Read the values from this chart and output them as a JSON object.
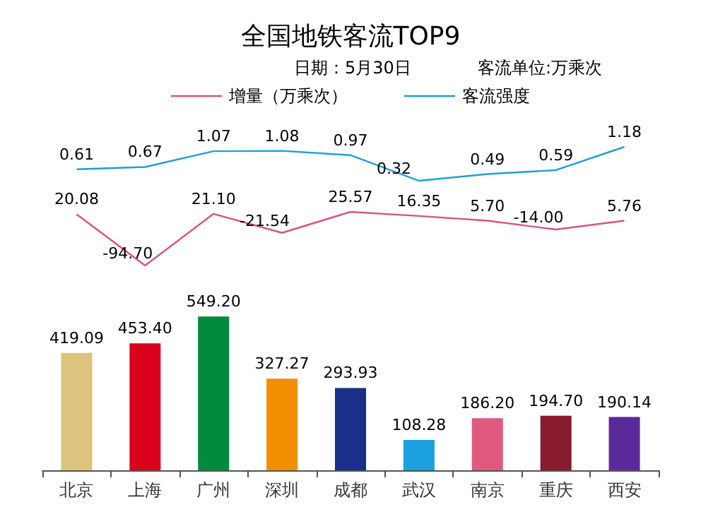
{
  "chart_data": [
    {
      "type": "line",
      "title": "全国地铁客流TOP9",
      "subtitle": "日期：5月30日",
      "annotations": [
        "客流单位:万乘次"
      ],
      "series": [
        {
          "name": "客流强度",
          "color": "#1e9fd6",
          "values": [
            0.61,
            0.67,
            1.07,
            1.08,
            0.97,
            0.32,
            0.49,
            0.59,
            1.18
          ],
          "value_labels": [
            "0.61",
            "0.67",
            "1.07",
            "1.08",
            "0.97",
            "0.32",
            "0.49",
            "0.59",
            "1.18"
          ]
        }
      ],
      "legend": "top",
      "marker": "none",
      "tick_labels": false
    },
    {
      "type": "line",
      "series": [
        {
          "name": "增量（万乘次）",
          "color": "#d9557a",
          "values": [
            20.08,
            -94.7,
            21.1,
            -21.54,
            25.57,
            16.35,
            5.7,
            -14.0,
            5.76
          ],
          "value_labels": [
            "20.08",
            "-94.70",
            "21.10",
            "-21.54",
            "25.57",
            "16.35",
            "5.70",
            "-14.00",
            "5.76"
          ]
        }
      ],
      "marker": "none",
      "tick_labels": false
    },
    {
      "type": "bar",
      "categories": [
        "北京",
        "上海",
        "广州",
        "深圳",
        "成都",
        "武汉",
        "南京",
        "重庆",
        "西安"
      ],
      "series": [
        {
          "type": "bar",
          "colors": [
            "#dcc47e",
            "#d9001b",
            "#008a3e",
            "#f09000",
            "#1a2f87",
            "#1ca0e0",
            "#e05a80",
            "#8a1a2e",
            "#5a2a9a"
          ],
          "values": [
            419.09,
            453.4,
            549.2,
            327.27,
            293.93,
            108.28,
            186.2,
            194.7,
            190.14
          ],
          "value_labels": [
            "419.09",
            "453.40",
            "549.20",
            "327.27",
            "293.93",
            "108.28",
            "186.20",
            "194.70",
            "190.14"
          ]
        }
      ],
      "tick_labels": "x"
    }
  ]
}
